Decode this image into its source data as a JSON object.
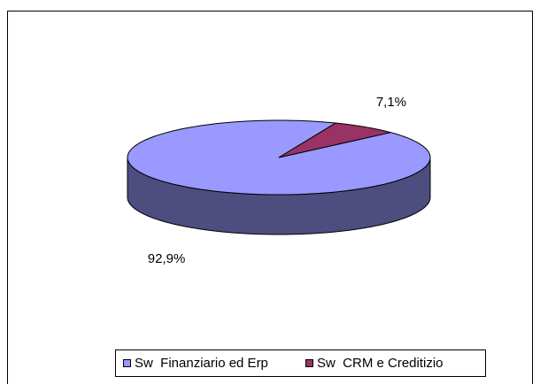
{
  "chart_data": {
    "type": "pie",
    "categories": [
      "Sw  Finanziario ed Erp",
      "Sw  CRM e Creditizio"
    ],
    "values": [
      92.9,
      7.1
    ],
    "value_labels": [
      "92,9%",
      "7,1%"
    ],
    "colors": [
      "#9999ff",
      "#993366"
    ],
    "legend": "bottom"
  }
}
